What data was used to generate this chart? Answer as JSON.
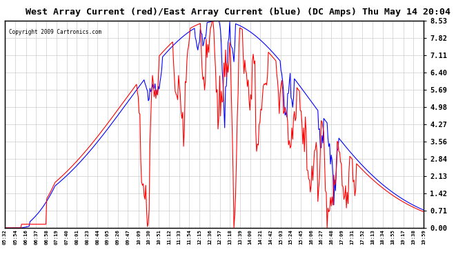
{
  "title": "West Array Current (red)/East Array Current (blue) (DC Amps) Thu May 14 20:04",
  "copyright": "Copyright 2009 Cartronics.com",
  "title_fontsize": 13,
  "title_color": "#000000",
  "background_color": "#ffffff",
  "plot_bg_color": "#ffffff",
  "grid_color": "#cccccc",
  "red_color": "#ff0000",
  "blue_color": "#0000ff",
  "yticks": [
    0.0,
    0.71,
    1.42,
    2.13,
    2.84,
    3.56,
    4.27,
    4.98,
    5.69,
    6.4,
    7.11,
    7.82,
    8.53
  ],
  "ymin": 0.0,
  "ymax": 8.53,
  "xtick_labels": [
    "05:32",
    "05:54",
    "06:16",
    "06:37",
    "06:58",
    "07:19",
    "07:40",
    "08:01",
    "08:23",
    "08:44",
    "09:05",
    "09:26",
    "09:47",
    "10:09",
    "10:30",
    "10:51",
    "11:12",
    "11:33",
    "11:54",
    "12:15",
    "12:36",
    "12:57",
    "13:18",
    "13:39",
    "14:00",
    "14:21",
    "14:42",
    "15:03",
    "15:24",
    "15:45",
    "16:06",
    "16:27",
    "16:48",
    "17:09",
    "17:31",
    "17:52",
    "18:13",
    "18:34",
    "18:55",
    "19:17",
    "19:38",
    "19:59"
  ]
}
